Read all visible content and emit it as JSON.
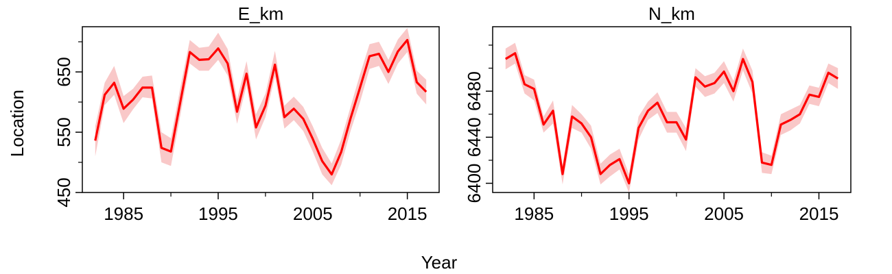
{
  "figure": {
    "xlabel": "Year",
    "ylabel": "Location"
  },
  "chart_data": [
    {
      "type": "line",
      "title": "E_km",
      "xlabel": "Year",
      "ylabel": "Location",
      "xlim": [
        1981,
        2018
      ],
      "ylim": [
        450,
        725
      ],
      "xticks": [
        1985,
        1995,
        2005,
        2015
      ],
      "yticks": [
        450,
        550,
        650
      ],
      "yticks_minor": [
        500,
        600,
        700
      ],
      "line_color": "#ff0000",
      "band_color": "#f9c8c8",
      "grid": false,
      "series": [
        {
          "x": [
            1982,
            1983,
            1984,
            1985,
            1986,
            1987,
            1988,
            1989,
            1990,
            1991,
            1992,
            1993,
            1994,
            1995,
            1996,
            1997,
            1998,
            1999,
            2000,
            2001,
            2002,
            2003,
            2004,
            2005,
            2006,
            2007,
            2008,
            2009,
            2010,
            2011,
            2012,
            2013,
            2014,
            2015,
            2016,
            2017
          ],
          "y": [
            536,
            612,
            632,
            589,
            604,
            624,
            624,
            524,
            518,
            600,
            683,
            670,
            671,
            689,
            664,
            584,
            647,
            558,
            594,
            662,
            575,
            589,
            572,
            539,
            502,
            480,
            517,
            573,
            624,
            676,
            680,
            650,
            684,
            703,
            633,
            617
          ],
          "lower": [
            510,
            595,
            612,
            565,
            588,
            608,
            606,
            500,
            494,
            578,
            664,
            652,
            652,
            670,
            644,
            564,
            628,
            538,
            575,
            643,
            556,
            570,
            552,
            518,
            480,
            462,
            496,
            552,
            600,
            655,
            660,
            630,
            664,
            683,
            614,
            596
          ],
          "upper": [
            560,
            632,
            660,
            610,
            622,
            642,
            644,
            550,
            540,
            624,
            703,
            690,
            692,
            715,
            688,
            604,
            668,
            580,
            614,
            685,
            594,
            609,
            592,
            560,
            524,
            498,
            538,
            592,
            646,
            696,
            700,
            670,
            704,
            723,
            652,
            637
          ]
        }
      ]
    },
    {
      "type": "line",
      "title": "N_km",
      "xlabel": "Year",
      "ylabel": "Location",
      "xlim": [
        1981,
        2018
      ],
      "ylim": [
        6392,
        6536
      ],
      "xticks": [
        1985,
        1995,
        2005,
        2015
      ],
      "yticks": [
        6400,
        6440,
        6480
      ],
      "yticks_minor": [
        6420,
        6460,
        6500,
        6520
      ],
      "line_color": "#ff0000",
      "band_color": "#f9c8c8",
      "grid": false,
      "series": [
        {
          "x": [
            1982,
            1983,
            1984,
            1985,
            1986,
            1987,
            1988,
            1989,
            1990,
            1991,
            1992,
            1993,
            1994,
            1995,
            1996,
            1997,
            1998,
            1999,
            2000,
            2001,
            2002,
            2003,
            2004,
            2005,
            2006,
            2007,
            2008,
            2009,
            2010,
            2011,
            2012,
            2013,
            2014,
            2015,
            2016,
            2017
          ],
          "y": [
            6508,
            6513,
            6486,
            6482,
            6451,
            6463,
            6408,
            6458,
            6452,
            6440,
            6408,
            6416,
            6421,
            6400,
            6448,
            6463,
            6470,
            6453,
            6453,
            6438,
            6492,
            6484,
            6487,
            6497,
            6480,
            6508,
            6488,
            6418,
            6416,
            6451,
            6455,
            6460,
            6477,
            6475,
            6496,
            6491
          ],
          "lower": [
            6499,
            6504,
            6478,
            6472,
            6444,
            6452,
            6399,
            6448,
            6444,
            6430,
            6399,
            6406,
            6412,
            6392,
            6438,
            6455,
            6461,
            6444,
            6444,
            6428,
            6484,
            6475,
            6478,
            6487,
            6471,
            6498,
            6478,
            6409,
            6408,
            6442,
            6446,
            6452,
            6469,
            6467,
            6487,
            6482
          ],
          "upper": [
            6517,
            6522,
            6494,
            6490,
            6458,
            6472,
            6416,
            6468,
            6460,
            6450,
            6417,
            6425,
            6430,
            6408,
            6458,
            6471,
            6479,
            6462,
            6462,
            6448,
            6500,
            6493,
            6496,
            6506,
            6489,
            6517,
            6498,
            6427,
            6424,
            6460,
            6464,
            6468,
            6485,
            6483,
            6504,
            6500
          ]
        }
      ]
    }
  ]
}
